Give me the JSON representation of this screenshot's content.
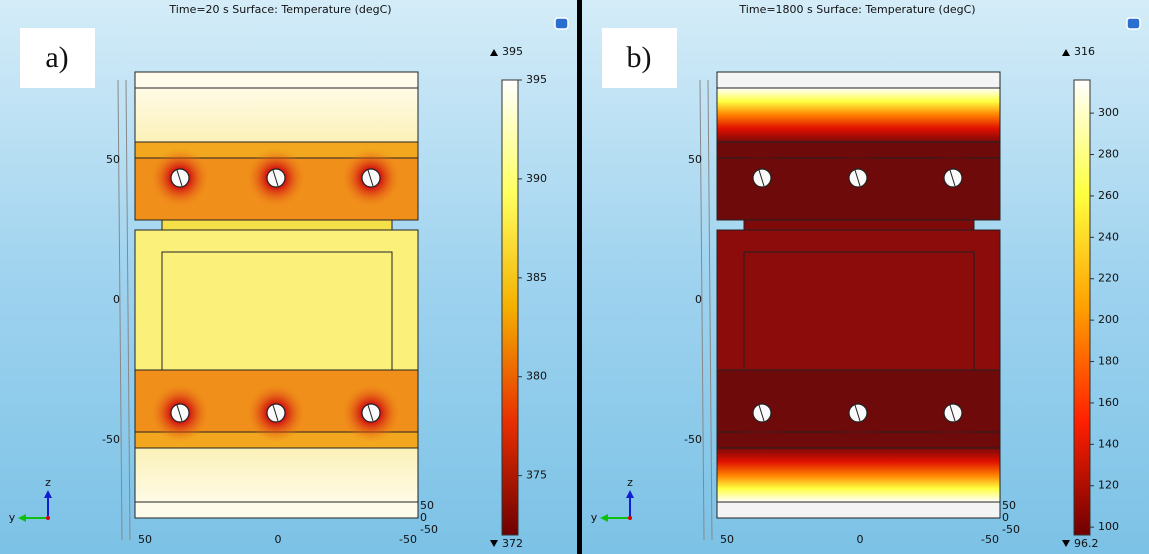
{
  "panels": [
    {
      "label": "a)",
      "title": "Time=20 s   Surface: Temperature (degC)",
      "colorbar": {
        "max": 395,
        "min": 372,
        "ticks": [
          395,
          390,
          385,
          380,
          375
        ]
      },
      "left_ticks": [
        "50",
        "0",
        "-50"
      ],
      "bottom_ticks": [
        "50",
        "0",
        "-50"
      ],
      "depth_ticks": [
        "50",
        "0",
        "-50"
      ],
      "triad": [
        "z",
        "y"
      ]
    },
    {
      "label": "b)",
      "title": "Time=1800 s   Surface: Temperature (degC)",
      "colorbar": {
        "max": 316,
        "min": 96.2,
        "ticks": [
          300,
          280,
          260,
          240,
          220,
          200,
          180,
          160,
          140,
          120,
          100
        ]
      },
      "left_ticks": [
        "50",
        "0",
        "-50"
      ],
      "bottom_ticks": [
        "50",
        "0",
        "-50"
      ],
      "depth_ticks": [
        "50",
        "0",
        "-50"
      ],
      "triad": [
        "z",
        "y"
      ]
    }
  ]
}
